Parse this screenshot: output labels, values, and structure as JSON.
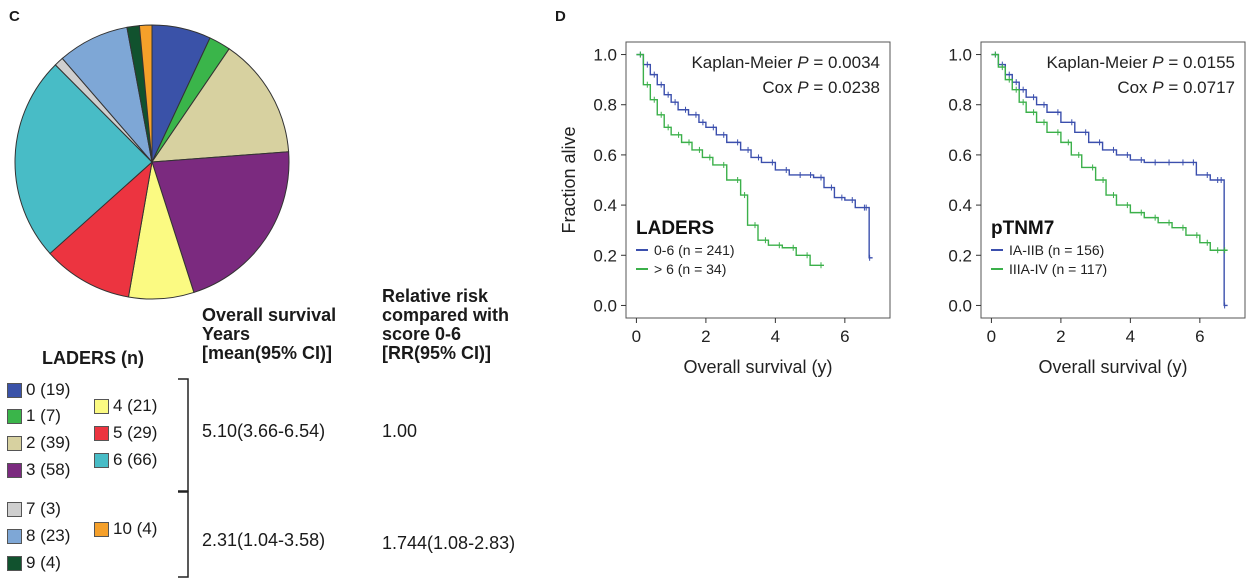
{
  "panel_c": {
    "label": "C",
    "legend_title": "LADERS (n)",
    "headers": {
      "os": [
        "Overall survival",
        "Years",
        "[mean(95% CI)]"
      ],
      "rr": [
        "Relative risk",
        "compared with",
        "score 0-6",
        "[RR(95% CI)]"
      ]
    },
    "rows": [
      {
        "os": "5.10(3.66-6.54)",
        "rr": "1.00"
      },
      {
        "os": "2.31(1.04-3.58)",
        "rr": "1.744(1.08-2.83)"
      }
    ]
  },
  "panel_d": {
    "label": "D"
  },
  "chart_data": [
    {
      "type": "pie",
      "slices": [
        {
          "label": "0 (19)",
          "value": 19,
          "color": "#3a52a8"
        },
        {
          "label": "1 (7)",
          "value": 7,
          "color": "#3ab54a"
        },
        {
          "label": "2 (39)",
          "value": 39,
          "color": "#d7d1a0"
        },
        {
          "label": "3 (58)",
          "value": 58,
          "color": "#7b2a7f"
        },
        {
          "label": "4 (21)",
          "value": 21,
          "color": "#fbfa82"
        },
        {
          "label": "5 (29)",
          "value": 29,
          "color": "#ec3440"
        },
        {
          "label": "6 (66)",
          "value": 66,
          "color": "#48bcc6"
        },
        {
          "label": "7 (3)",
          "value": 3,
          "color": "#cfcfcf"
        },
        {
          "label": "8 (23)",
          "value": 23,
          "color": "#7ea7d6"
        },
        {
          "label": "9 (4)",
          "value": 4,
          "color": "#11522e"
        },
        {
          "label": "10 (4)",
          "value": 4,
          "color": "#f5a02a"
        }
      ]
    },
    {
      "type": "line",
      "title_label": "LADERS",
      "xlabel": "Overall survival (y)",
      "ylabel": "Fraction alive",
      "xlim": [
        -0.3,
        7.3
      ],
      "ylim": [
        -0.05,
        1.05
      ],
      "xticks": [
        "0",
        "2",
        "4",
        "6"
      ],
      "yticks": [
        "0.0",
        "0.2",
        "0.4",
        "0.6",
        "0.8",
        "1.0"
      ],
      "stats": [
        "Kaplan-Meier P = 0.0034",
        "Cox P = 0.0238"
      ],
      "series": [
        {
          "name": "0-6 (n = 241)",
          "color": "#3b4fad",
          "x": [
            0,
            0.2,
            0.4,
            0.6,
            0.8,
            1.0,
            1.2,
            1.5,
            1.8,
            2.0,
            2.3,
            2.6,
            3.0,
            3.3,
            3.6,
            4.0,
            4.4,
            4.8,
            5.1,
            5.4,
            5.7,
            6.0,
            6.3,
            6.65,
            6.7,
            6.8
          ],
          "y": [
            1.0,
            0.96,
            0.92,
            0.88,
            0.84,
            0.81,
            0.78,
            0.76,
            0.73,
            0.71,
            0.68,
            0.65,
            0.62,
            0.59,
            0.57,
            0.54,
            0.52,
            0.52,
            0.51,
            0.47,
            0.43,
            0.42,
            0.39,
            0.39,
            0.19,
            0.19
          ]
        },
        {
          "name": "> 6 (n = 34)",
          "color": "#3bb04a",
          "x": [
            0,
            0.2,
            0.4,
            0.6,
            0.8,
            1.0,
            1.3,
            1.6,
            1.9,
            2.2,
            2.6,
            3.0,
            3.2,
            3.5,
            3.8,
            4.2,
            4.6,
            5.0,
            5.4
          ],
          "y": [
            1.0,
            0.88,
            0.82,
            0.76,
            0.71,
            0.68,
            0.65,
            0.62,
            0.59,
            0.56,
            0.5,
            0.44,
            0.32,
            0.26,
            0.24,
            0.23,
            0.2,
            0.16,
            0.16
          ]
        }
      ]
    },
    {
      "type": "line",
      "title_label": "pTNM7",
      "xlabel": "Overall survival (y)",
      "ylabel": "",
      "xlim": [
        -0.3,
        7.3
      ],
      "ylim": [
        -0.05,
        1.05
      ],
      "xticks": [
        "0",
        "2",
        "4",
        "6"
      ],
      "yticks": [
        "0.0",
        "0.2",
        "0.4",
        "0.6",
        "0.8",
        "1.0"
      ],
      "stats": [
        "Kaplan-Meier P = 0.0155",
        "Cox P = 0.0717"
      ],
      "series": [
        {
          "name": "IA-IIB (n = 156)",
          "color": "#3b4fad",
          "x": [
            0,
            0.2,
            0.4,
            0.6,
            0.8,
            1.0,
            1.3,
            1.6,
            2.0,
            2.4,
            2.8,
            3.2,
            3.6,
            4.0,
            4.4,
            4.8,
            5.2,
            5.6,
            5.9,
            6.3,
            6.6,
            6.7,
            6.8
          ],
          "y": [
            1.0,
            0.96,
            0.92,
            0.89,
            0.86,
            0.83,
            0.8,
            0.77,
            0.73,
            0.69,
            0.65,
            0.62,
            0.6,
            0.58,
            0.57,
            0.57,
            0.57,
            0.57,
            0.52,
            0.5,
            0.5,
            0.0,
            0.0
          ]
        },
        {
          "name": "IIIA-IV (n = 117)",
          "color": "#3bb04a",
          "x": [
            0,
            0.2,
            0.4,
            0.6,
            0.8,
            1.0,
            1.3,
            1.6,
            2.0,
            2.3,
            2.6,
            3.0,
            3.3,
            3.6,
            4.0,
            4.4,
            4.8,
            5.2,
            5.6,
            6.0,
            6.3,
            6.6,
            6.8
          ],
          "y": [
            1.0,
            0.95,
            0.9,
            0.86,
            0.81,
            0.77,
            0.73,
            0.69,
            0.65,
            0.6,
            0.55,
            0.5,
            0.44,
            0.4,
            0.37,
            0.35,
            0.33,
            0.31,
            0.28,
            0.25,
            0.22,
            0.22,
            0.22
          ]
        }
      ]
    }
  ]
}
